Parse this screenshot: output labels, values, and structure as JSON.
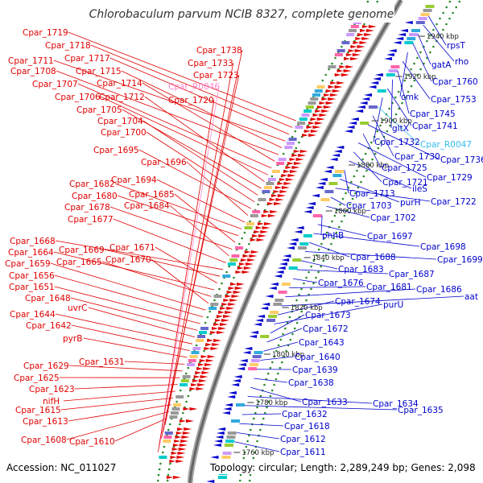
{
  "title": "Chlorobaculum parvum NCIB 8327, complete genome",
  "accession": "Accession: NC_011027",
  "topology": "Topology: circular; Length: 2,289,249 bp; Genes: 2,098",
  "colors": {
    "forward": "#e00000",
    "reverse": "#0000cc",
    "rna_forward": "#ff88cc",
    "rna_reverse": "#33bbee",
    "backbone": "#888888",
    "gc_dots": "#2a8a2a"
  },
  "kbp_ticks": [
    "1940 kbp",
    "1920 kbp",
    "1900 kbp",
    "1880 kbp",
    "1860 kbp",
    "1840 kbp",
    "1820 kbp",
    "1800 kbp",
    "1780 kbp",
    "1760 kbp"
  ],
  "left_labels": [
    {
      "text": "Cpar_1719",
      "color": "red"
    },
    {
      "text": "Cpar_1718",
      "color": "red"
    },
    {
      "text": "Cpar_1717",
      "color": "red"
    },
    {
      "text": "Cpar_1711",
      "color": "red"
    },
    {
      "text": "Cpar_1715",
      "color": "red"
    },
    {
      "text": "Cpar_1708",
      "color": "red"
    },
    {
      "text": "Cpar_1714",
      "color": "red"
    },
    {
      "text": "Cpar_1707",
      "color": "red"
    },
    {
      "text": "Cpar_1706",
      "color": "red"
    },
    {
      "text": "Cpar_1712",
      "color": "red"
    },
    {
      "text": "Cpar_1705",
      "color": "red"
    },
    {
      "text": "Cpar_1704",
      "color": "red"
    },
    {
      "text": "Cpar_1700",
      "color": "red"
    },
    {
      "text": "Cpar_1695",
      "color": "red"
    },
    {
      "text": "Cpar_1696",
      "color": "red"
    },
    {
      "text": "Cpar_1694",
      "color": "red"
    },
    {
      "text": "Cpar_1682",
      "color": "red"
    },
    {
      "text": "Cpar_1680",
      "color": "red"
    },
    {
      "text": "Cpar_1685",
      "color": "red"
    },
    {
      "text": "Cpar_1678",
      "color": "red"
    },
    {
      "text": "Cpar_1684",
      "color": "red"
    },
    {
      "text": "Cpar_1677",
      "color": "red"
    },
    {
      "text": "Cpar_1668",
      "color": "red"
    },
    {
      "text": "Cpar_1669",
      "color": "red"
    },
    {
      "text": "Cpar_1671",
      "color": "red"
    },
    {
      "text": "Cpar_1664",
      "color": "red"
    },
    {
      "text": "Cpar_1665",
      "color": "red"
    },
    {
      "text": "Cpar_1670",
      "color": "red"
    },
    {
      "text": "Cpar_1659",
      "color": "red"
    },
    {
      "text": "Cpar_1656",
      "color": "red"
    },
    {
      "text": "Cpar_1651",
      "color": "red"
    },
    {
      "text": "Cpar_1648",
      "color": "red"
    },
    {
      "text": "uvrC",
      "color": "red"
    },
    {
      "text": "Cpar_1644",
      "color": "red"
    },
    {
      "text": "Cpar_1642",
      "color": "red"
    },
    {
      "text": "pyrB",
      "color": "red"
    },
    {
      "text": "Cpar_1631",
      "color": "red"
    },
    {
      "text": "Cpar_1629",
      "color": "red"
    },
    {
      "text": "Cpar_1625",
      "color": "red"
    },
    {
      "text": "Cpar_1623",
      "color": "red"
    },
    {
      "text": "nifH",
      "color": "red"
    },
    {
      "text": "Cpar_1615",
      "color": "red"
    },
    {
      "text": "Cpar_1613",
      "color": "red"
    },
    {
      "text": "Cpar_1608",
      "color": "red"
    },
    {
      "text": "Cpar_1610",
      "color": "red"
    },
    {
      "text": "Cpar_1738",
      "color": "red"
    },
    {
      "text": "Cpar_1733",
      "color": "red"
    },
    {
      "text": "Cpar_1723",
      "color": "red"
    },
    {
      "text": "Cpar_R0046",
      "color": "pink"
    },
    {
      "text": "Cpar_1720",
      "color": "red"
    }
  ],
  "right_labels": [
    {
      "text": "rpsT",
      "color": "blue"
    },
    {
      "text": "rho",
      "color": "blue"
    },
    {
      "text": "gatA",
      "color": "blue"
    },
    {
      "text": "Cpar_1760",
      "color": "blue"
    },
    {
      "text": "cmk",
      "color": "blue"
    },
    {
      "text": "Cpar_1753",
      "color": "blue"
    },
    {
      "text": "Cpar_1745",
      "color": "blue"
    },
    {
      "text": "gltX",
      "color": "blue"
    },
    {
      "text": "Cpar_1741",
      "color": "blue"
    },
    {
      "text": "Cpar_1732",
      "color": "blue"
    },
    {
      "text": "Cpar_R0047",
      "color": "cyan"
    },
    {
      "text": "Cpar_1730",
      "color": "blue"
    },
    {
      "text": "Cpar_1736",
      "color": "blue"
    },
    {
      "text": "Cpar_1725",
      "color": "blue"
    },
    {
      "text": "Cpar_1729",
      "color": "blue"
    },
    {
      "text": "Cpar_1721",
      "color": "blue"
    },
    {
      "text": "ileS",
      "color": "blue"
    },
    {
      "text": "Cpar_1713",
      "color": "blue"
    },
    {
      "text": "purH",
      "color": "blue"
    },
    {
      "text": "Cpar_1722",
      "color": "blue"
    },
    {
      "text": "Cpar_1703",
      "color": "blue"
    },
    {
      "text": "Cpar_1702",
      "color": "blue"
    },
    {
      "text": "phhB",
      "color": "blue"
    },
    {
      "text": "Cpar_1697",
      "color": "blue"
    },
    {
      "text": "Cpar_1698",
      "color": "blue"
    },
    {
      "text": "Cpar_1688",
      "color": "blue"
    },
    {
      "text": "Cpar_1699",
      "color": "blue"
    },
    {
      "text": "Cpar_1683",
      "color": "blue"
    },
    {
      "text": "Cpar_1687",
      "color": "blue"
    },
    {
      "text": "Cpar_1676",
      "color": "blue"
    },
    {
      "text": "Cpar_1681",
      "color": "blue"
    },
    {
      "text": "Cpar_1686",
      "color": "blue"
    },
    {
      "text": "aat",
      "color": "blue"
    },
    {
      "text": "Cpar_1674",
      "color": "blue"
    },
    {
      "text": "purU",
      "color": "blue"
    },
    {
      "text": "Cpar_1673",
      "color": "blue"
    },
    {
      "text": "Cpar_1672",
      "color": "blue"
    },
    {
      "text": "Cpar_1643",
      "color": "blue"
    },
    {
      "text": "Cpar_1640",
      "color": "blue"
    },
    {
      "text": "Cpar_1639",
      "color": "blue"
    },
    {
      "text": "Cpar_1638",
      "color": "blue"
    },
    {
      "text": "Cpar_1633",
      "color": "blue"
    },
    {
      "text": "Cpar_1634",
      "color": "blue"
    },
    {
      "text": "Cpar_1635",
      "color": "blue"
    },
    {
      "text": "Cpar_1632",
      "color": "blue"
    },
    {
      "text": "Cpar_1618",
      "color": "blue"
    },
    {
      "text": "Cpar_1612",
      "color": "blue"
    },
    {
      "text": "Cpar_1611",
      "color": "blue"
    }
  ]
}
